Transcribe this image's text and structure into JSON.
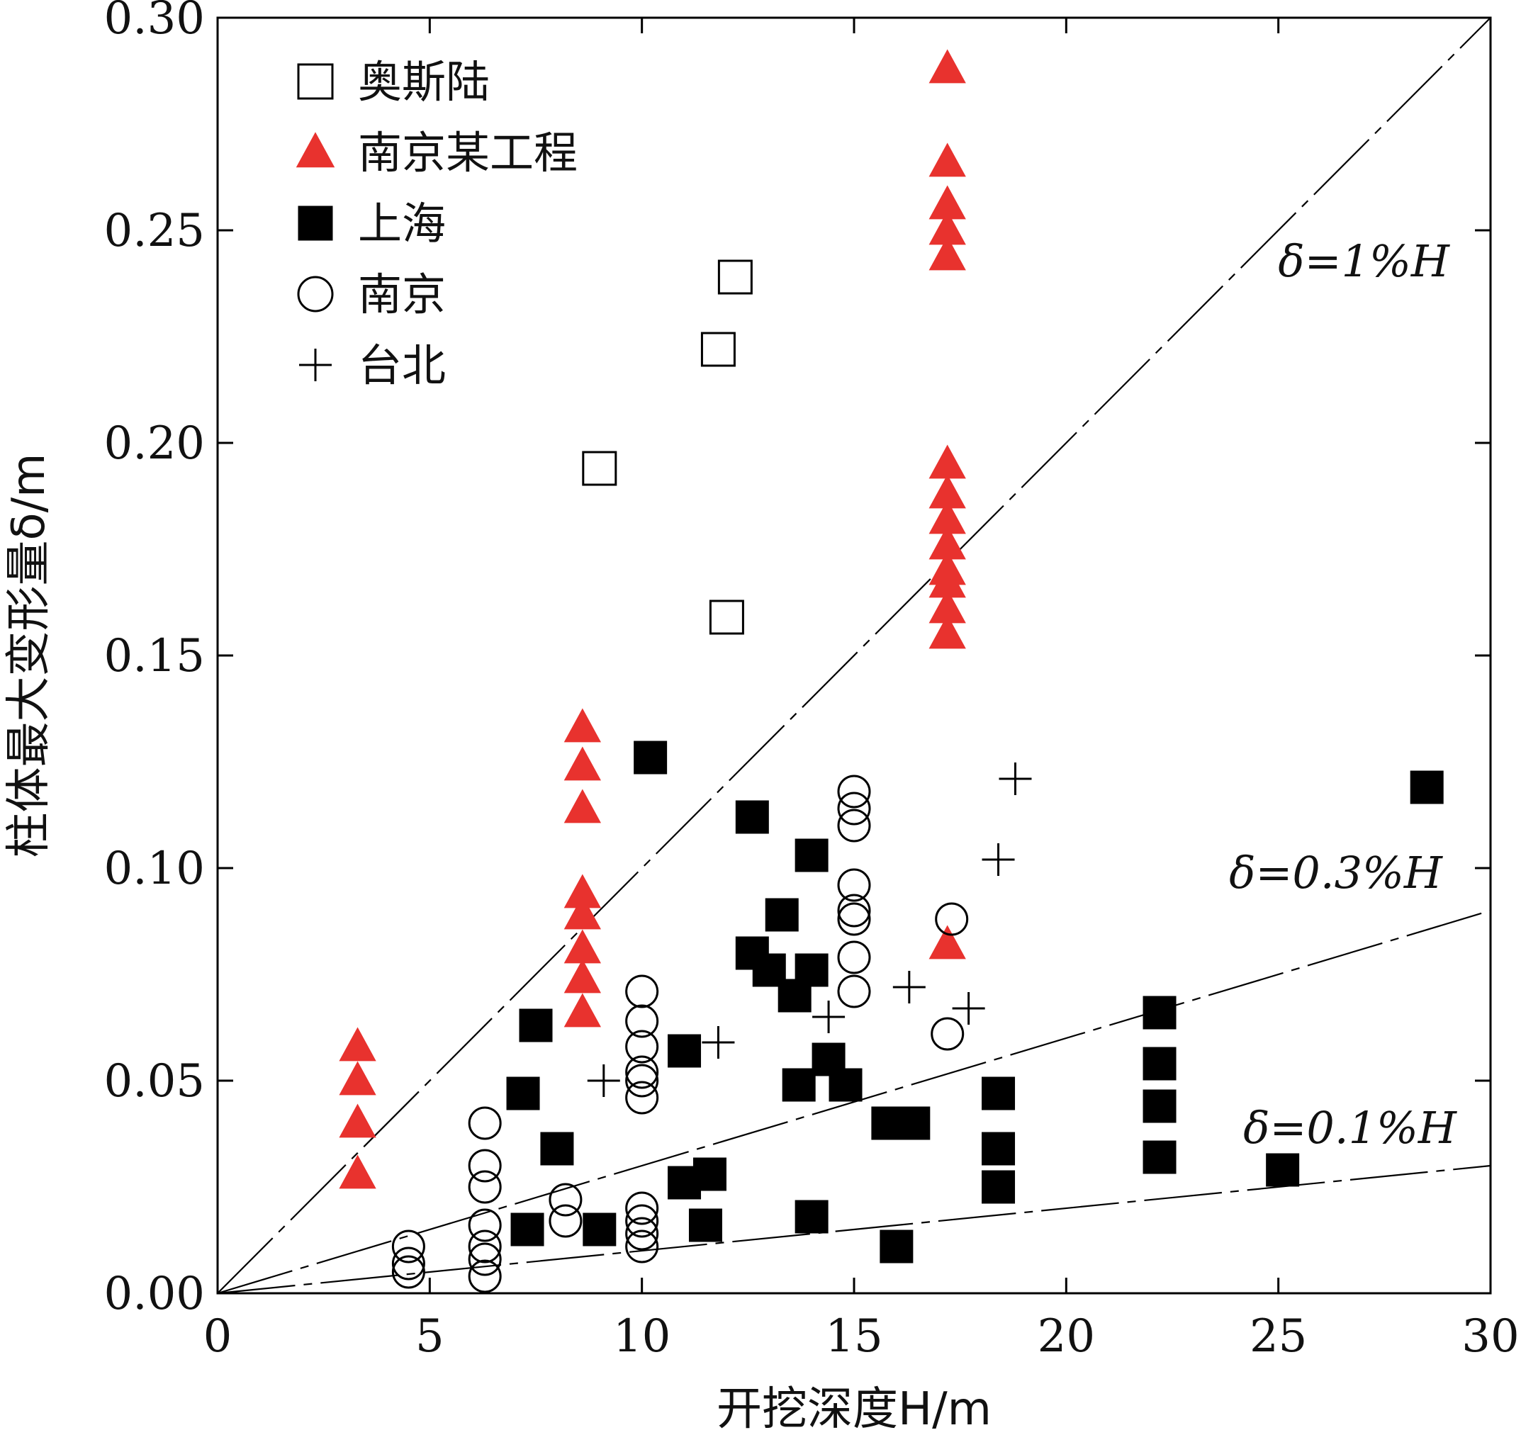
{
  "chart_data": {
    "type": "scatter",
    "xlabel": "开挖深度H/m",
    "ylabel": "柱体最大变形量δ/m",
    "xlim": [
      0,
      30
    ],
    "ylim": [
      0,
      0.3
    ],
    "x_ticks": [
      "0",
      "5",
      "10",
      "15",
      "20",
      "25",
      "30"
    ],
    "y_ticks": [
      "0.00",
      "0.05",
      "0.10",
      "0.15",
      "0.20",
      "0.25",
      "0.30"
    ],
    "legend_position": "top-left",
    "series": [
      {
        "name": "奥斯陆",
        "marker": "open-square",
        "color": "#000000",
        "points": [
          [
            9.0,
            0.194
          ],
          [
            12.2,
            0.239
          ],
          [
            11.8,
            0.222
          ],
          [
            12.0,
            0.159
          ]
        ]
      },
      {
        "name": "南京某工程",
        "marker": "filled-triangle",
        "color": "#e8322e",
        "points": [
          [
            3.3,
            0.058
          ],
          [
            3.3,
            0.05
          ],
          [
            3.3,
            0.04
          ],
          [
            3.3,
            0.028
          ],
          [
            8.6,
            0.133
          ],
          [
            8.6,
            0.124
          ],
          [
            8.6,
            0.114
          ],
          [
            8.6,
            0.094
          ],
          [
            8.6,
            0.089
          ],
          [
            8.6,
            0.081
          ],
          [
            8.6,
            0.074
          ],
          [
            8.6,
            0.066
          ],
          [
            17.2,
            0.288
          ],
          [
            17.2,
            0.266
          ],
          [
            17.2,
            0.256
          ],
          [
            17.2,
            0.25
          ],
          [
            17.2,
            0.244
          ],
          [
            17.2,
            0.195
          ],
          [
            17.2,
            0.188
          ],
          [
            17.2,
            0.182
          ],
          [
            17.2,
            0.176
          ],
          [
            17.2,
            0.17
          ],
          [
            17.2,
            0.167
          ],
          [
            17.2,
            0.161
          ],
          [
            17.2,
            0.155
          ],
          [
            17.2,
            0.082
          ]
        ]
      },
      {
        "name": "上海",
        "marker": "filled-square",
        "color": "#000000",
        "points": [
          [
            7.2,
            0.047
          ],
          [
            7.5,
            0.063
          ],
          [
            7.3,
            0.015
          ],
          [
            8.0,
            0.034
          ],
          [
            9.0,
            0.015
          ],
          [
            10.2,
            0.126
          ],
          [
            11.0,
            0.057
          ],
          [
            11.0,
            0.026
          ],
          [
            11.6,
            0.028
          ],
          [
            11.5,
            0.016
          ],
          [
            12.6,
            0.112
          ],
          [
            12.6,
            0.08
          ],
          [
            13.0,
            0.076
          ],
          [
            13.3,
            0.089
          ],
          [
            13.6,
            0.07
          ],
          [
            13.7,
            0.049
          ],
          [
            14.0,
            0.103
          ],
          [
            14.0,
            0.076
          ],
          [
            14.0,
            0.018
          ],
          [
            14.4,
            0.055
          ],
          [
            14.8,
            0.049
          ],
          [
            15.8,
            0.04
          ],
          [
            16.0,
            0.011
          ],
          [
            16.4,
            0.04
          ],
          [
            18.4,
            0.047
          ],
          [
            18.4,
            0.034
          ],
          [
            18.4,
            0.025
          ],
          [
            22.2,
            0.066
          ],
          [
            22.2,
            0.054
          ],
          [
            22.2,
            0.044
          ],
          [
            22.2,
            0.032
          ],
          [
            25.1,
            0.029
          ],
          [
            28.5,
            0.119
          ]
        ]
      },
      {
        "name": "南京",
        "marker": "open-circle",
        "color": "#000000",
        "points": [
          [
            4.5,
            0.011
          ],
          [
            4.5,
            0.007
          ],
          [
            4.5,
            0.005
          ],
          [
            6.3,
            0.04
          ],
          [
            6.3,
            0.03
          ],
          [
            6.3,
            0.025
          ],
          [
            6.3,
            0.016
          ],
          [
            6.3,
            0.011
          ],
          [
            6.3,
            0.008
          ],
          [
            6.3,
            0.004
          ],
          [
            8.2,
            0.022
          ],
          [
            8.2,
            0.017
          ],
          [
            10.0,
            0.071
          ],
          [
            10.0,
            0.064
          ],
          [
            10.0,
            0.058
          ],
          [
            10.0,
            0.052
          ],
          [
            10.0,
            0.05
          ],
          [
            10.0,
            0.046
          ],
          [
            10.0,
            0.02
          ],
          [
            10.0,
            0.017
          ],
          [
            10.0,
            0.014
          ],
          [
            10.0,
            0.011
          ],
          [
            15.0,
            0.118
          ],
          [
            15.0,
            0.114
          ],
          [
            15.0,
            0.11
          ],
          [
            15.0,
            0.096
          ],
          [
            15.0,
            0.09
          ],
          [
            15.0,
            0.088
          ],
          [
            15.0,
            0.079
          ],
          [
            15.0,
            0.071
          ],
          [
            17.3,
            0.088
          ],
          [
            17.2,
            0.061
          ]
        ]
      },
      {
        "name": "台北",
        "marker": "plus",
        "color": "#000000",
        "points": [
          [
            9.1,
            0.05
          ],
          [
            11.8,
            0.059
          ],
          [
            14.4,
            0.065
          ],
          [
            16.3,
            0.072
          ],
          [
            17.7,
            0.067
          ],
          [
            18.4,
            0.102
          ],
          [
            18.8,
            0.121
          ]
        ]
      }
    ],
    "reference_lines": [
      {
        "label": "δ=1%H",
        "slope": 0.01
      },
      {
        "label": "δ=0.3%H",
        "slope": 0.003
      },
      {
        "label": "δ=0.1%H",
        "slope": 0.001
      }
    ]
  }
}
